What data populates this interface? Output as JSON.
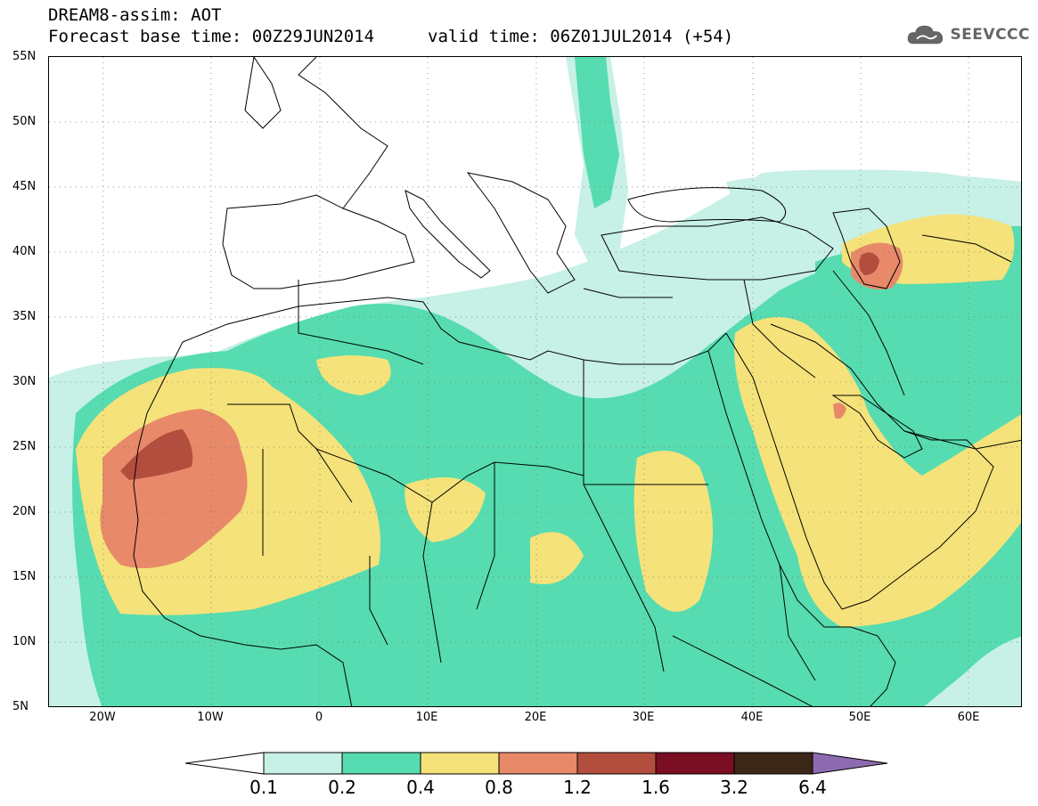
{
  "header": {
    "title": "DREAM8-assim: AOT",
    "base_time": "Forecast base time: 00Z29JUN2014",
    "valid_time": "valid time: 06Z01JUL2014 (+54)"
  },
  "logo": {
    "text": "SEEVCCC",
    "icon": "cloud-icon",
    "color": "#666666"
  },
  "map": {
    "lon_range": [
      -25,
      65
    ],
    "lat_range": [
      5,
      55
    ],
    "lat_labels": [
      "55N",
      "50N",
      "45N",
      "40N",
      "35N",
      "30N",
      "25N",
      "20N",
      "15N",
      "10N",
      "5N"
    ],
    "lon_labels": [
      "20W",
      "10W",
      "0",
      "10E",
      "20E",
      "30E",
      "40E",
      "50E",
      "60E"
    ],
    "grid": "dotted"
  },
  "legend": {
    "labels": [
      "0.1",
      "0.2",
      "0.4",
      "0.8",
      "1.2",
      "1.6",
      "3.2",
      "6.4"
    ],
    "colors": [
      "#c7f0e6",
      "#56dcb0",
      "#f5e27a",
      "#e8896a",
      "#b34e3e",
      "#7a0e22",
      "#3a2718",
      "#8e6bb0"
    ],
    "below_color": "#ffffff"
  }
}
